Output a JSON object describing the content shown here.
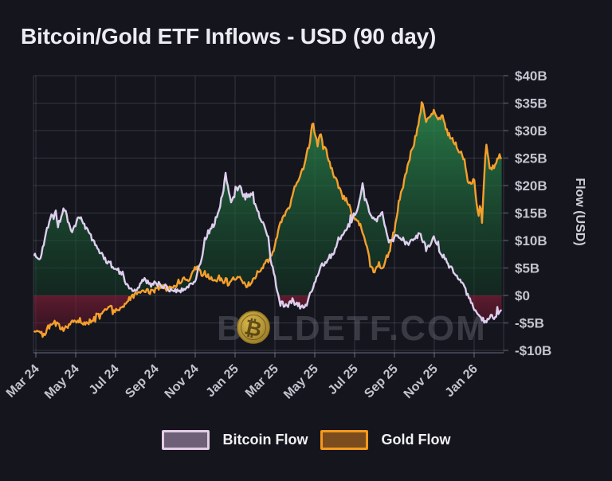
{
  "page": {
    "title": "Bitcoin/Gold ETF Inflows - USD (90 day)"
  },
  "watermark": {
    "prefix": "B",
    "coin_symbol": "₿",
    "suffix": "LDETF.COM",
    "full_text": "BOLDETF.COM"
  },
  "legend": {
    "items": [
      {
        "label": "Bitcoin Flow",
        "swatch_fill": "#6e6177",
        "swatch_border": "#e4cbe6"
      },
      {
        "label": "Gold Flow",
        "swatch_fill": "#7b4d1e",
        "swatch_border": "#f6991c"
      }
    ]
  },
  "colors": {
    "background": "#15151e",
    "grid": "rgba(163,168,184,0.22)",
    "plot_border": "rgba(163,168,184,0.40)",
    "tick_label": "#c4c4ce",
    "title": "#ebebf1",
    "bitcoin_line": "#decfee",
    "gold_line": "#f5a02c",
    "fill_positive_top": "rgba(50,160,88,0.85)",
    "fill_positive_bottom": "rgba(16,56,34,0.50)",
    "fill_negative_top": "rgba(130,30,56,0.68)",
    "fill_negative_bottom": "rgba(66,12,28,0.32)",
    "watermark_text": "rgba(128,128,140,0.35)",
    "coin_light": "#d9b84a",
    "coin_dark": "#8a6d22"
  },
  "chart_data": {
    "type": "line",
    "title": "Bitcoin/Gold ETF Inflows - USD (90 day)",
    "x_unit": "months since Mar 2024",
    "x_axis": {
      "tick_labels": [
        "Mar 24",
        "May 24",
        "Jul 24",
        "Sep 24",
        "Nov 24",
        "Jan 25",
        "Mar 25",
        "May 25",
        "Jul 25",
        "Sep 25",
        "Nov 25",
        "Jan 26"
      ],
      "tick_month_offsets": [
        0,
        2,
        4,
        6,
        8,
        10,
        12,
        14,
        16,
        18,
        20,
        22
      ]
    },
    "y_axis": {
      "label": "Flow (USD)",
      "tick_labels": [
        "$40B",
        "$35B",
        "$30B",
        "$25B",
        "$20B",
        "$15B",
        "$10B",
        "$5B",
        "$0",
        "-$5B",
        "-$10B"
      ],
      "tick_values": [
        40,
        35,
        30,
        25,
        20,
        15,
        10,
        5,
        0,
        -5,
        -10
      ],
      "range": [
        -10,
        40
      ],
      "unit": "USD billions"
    },
    "fill_between": {
      "positive": "green",
      "negative": "red"
    },
    "series": [
      {
        "name": "Bitcoin Flow",
        "color": "#decfee",
        "points": [
          [
            -0.1,
            7.5
          ],
          [
            0.2,
            6.3
          ],
          [
            0.5,
            11.5
          ],
          [
            0.8,
            14.5
          ],
          [
            1.0,
            15.4
          ],
          [
            1.1,
            12.3
          ],
          [
            1.4,
            16.2
          ],
          [
            1.7,
            13.0
          ],
          [
            1.8,
            11.2
          ],
          [
            2.2,
            14.5
          ],
          [
            2.6,
            12.0
          ],
          [
            2.9,
            10.0
          ],
          [
            3.4,
            6.8
          ],
          [
            3.8,
            5.5
          ],
          [
            4.1,
            4.8
          ],
          [
            4.6,
            2.0
          ],
          [
            5.0,
            0.8
          ],
          [
            5.4,
            2.8
          ],
          [
            5.8,
            2.0
          ],
          [
            6.1,
            2.2
          ],
          [
            6.7,
            1.2
          ],
          [
            7.3,
            0.9
          ],
          [
            7.7,
            1.8
          ],
          [
            8.0,
            3.0
          ],
          [
            8.3,
            6.2
          ],
          [
            8.5,
            10.6
          ],
          [
            8.9,
            12.7
          ],
          [
            9.2,
            15.6
          ],
          [
            9.4,
            19.0
          ],
          [
            9.5,
            22.3
          ],
          [
            9.8,
            17.2
          ],
          [
            10.2,
            20.0
          ],
          [
            10.5,
            17.8
          ],
          [
            10.8,
            18.3
          ],
          [
            11.1,
            15.3
          ],
          [
            11.5,
            12.8
          ],
          [
            11.7,
            10.0
          ],
          [
            11.8,
            6.2
          ],
          [
            12.0,
            3.0
          ],
          [
            12.2,
            -0.3
          ],
          [
            12.5,
            -2.3
          ],
          [
            12.8,
            -1.0
          ],
          [
            13.1,
            -1.5
          ],
          [
            13.5,
            -2.3
          ],
          [
            13.8,
            0.5
          ],
          [
            14.2,
            4.5
          ],
          [
            14.6,
            6.5
          ],
          [
            14.9,
            7.5
          ],
          [
            15.2,
            10.3
          ],
          [
            15.6,
            12.0
          ],
          [
            15.9,
            14.0
          ],
          [
            16.2,
            16.5
          ],
          [
            16.4,
            20.4
          ],
          [
            16.7,
            15.5
          ],
          [
            17.0,
            13.4
          ],
          [
            17.4,
            14.8
          ],
          [
            17.7,
            9.6
          ],
          [
            18.0,
            10.5
          ],
          [
            18.3,
            10.8
          ],
          [
            18.6,
            9.3
          ],
          [
            19.0,
            10.2
          ],
          [
            19.3,
            11.3
          ],
          [
            19.6,
            8.3
          ],
          [
            20.0,
            10.4
          ],
          [
            20.3,
            8.0
          ],
          [
            20.6,
            6.3
          ],
          [
            21.0,
            4.0
          ],
          [
            21.3,
            2.8
          ],
          [
            21.6,
            0.6
          ],
          [
            21.9,
            -1.5
          ],
          [
            22.1,
            -3.0
          ],
          [
            22.4,
            -4.4
          ],
          [
            22.6,
            -4.8
          ],
          [
            22.8,
            -3.8
          ],
          [
            23.0,
            -4.2
          ],
          [
            23.2,
            -3.3
          ],
          [
            23.4,
            -2.8
          ]
        ]
      },
      {
        "name": "Gold Flow",
        "color": "#f5a02c",
        "points": [
          [
            -0.1,
            -6.0
          ],
          [
            0.1,
            -6.8
          ],
          [
            0.4,
            -7.2
          ],
          [
            0.6,
            -5.8
          ],
          [
            0.9,
            -4.9
          ],
          [
            1.2,
            -5.8
          ],
          [
            1.4,
            -6.3
          ],
          [
            1.7,
            -5.2
          ],
          [
            2.1,
            -4.6
          ],
          [
            2.4,
            -5.2
          ],
          [
            2.6,
            -5.0
          ],
          [
            3.1,
            -3.6
          ],
          [
            3.5,
            -2.2
          ],
          [
            3.7,
            -2.1
          ],
          [
            4.0,
            -2.6
          ],
          [
            4.2,
            -2.4
          ],
          [
            4.7,
            -0.7
          ],
          [
            5.0,
            0.2
          ],
          [
            5.3,
            0.9
          ],
          [
            5.8,
            0.6
          ],
          [
            6.3,
            1.8
          ],
          [
            6.6,
            1.2
          ],
          [
            6.9,
            1.5
          ],
          [
            7.4,
            3.2
          ],
          [
            7.7,
            2.6
          ],
          [
            8.0,
            5.3
          ],
          [
            8.3,
            4.0
          ],
          [
            8.6,
            3.6
          ],
          [
            8.9,
            2.7
          ],
          [
            9.2,
            3.2
          ],
          [
            9.5,
            2.4
          ],
          [
            9.7,
            2.0
          ],
          [
            10.1,
            3.6
          ],
          [
            10.4,
            2.2
          ],
          [
            10.6,
            1.2
          ],
          [
            11.0,
            3.0
          ],
          [
            11.4,
            5.3
          ],
          [
            11.7,
            6.5
          ],
          [
            11.9,
            7.5
          ],
          [
            12.1,
            10.5
          ],
          [
            12.3,
            13.5
          ],
          [
            12.5,
            14.5
          ],
          [
            12.8,
            17.0
          ],
          [
            13.0,
            19.5
          ],
          [
            13.2,
            21.0
          ],
          [
            13.5,
            24.0
          ],
          [
            13.7,
            27.0
          ],
          [
            13.9,
            31.3
          ],
          [
            14.1,
            28.2
          ],
          [
            14.3,
            29.2
          ],
          [
            14.4,
            27.2
          ],
          [
            14.6,
            26.2
          ],
          [
            14.8,
            23.5
          ],
          [
            15.0,
            21.6
          ],
          [
            15.4,
            18.0
          ],
          [
            15.6,
            17.3
          ],
          [
            15.8,
            15.5
          ],
          [
            16.0,
            14.2
          ],
          [
            16.3,
            12.3
          ],
          [
            16.6,
            9.0
          ],
          [
            16.8,
            5.5
          ],
          [
            17.0,
            4.2
          ],
          [
            17.2,
            5.8
          ],
          [
            17.4,
            4.8
          ],
          [
            17.7,
            7.8
          ],
          [
            18.0,
            12.0
          ],
          [
            18.2,
            16.5
          ],
          [
            18.5,
            21.0
          ],
          [
            18.8,
            25.5
          ],
          [
            19.0,
            28.0
          ],
          [
            19.2,
            31.0
          ],
          [
            19.4,
            35.5
          ],
          [
            19.6,
            31.8
          ],
          [
            19.8,
            32.5
          ],
          [
            20.0,
            33.5
          ],
          [
            20.2,
            31.5
          ],
          [
            20.4,
            33.5
          ],
          [
            20.6,
            30.0
          ],
          [
            20.8,
            28.9
          ],
          [
            21.1,
            27.5
          ],
          [
            21.3,
            26.0
          ],
          [
            21.5,
            24.8
          ],
          [
            21.7,
            20.7
          ],
          [
            21.9,
            20.2
          ],
          [
            22.0,
            21.9
          ],
          [
            22.2,
            14.0
          ],
          [
            22.3,
            17.0
          ],
          [
            22.4,
            13.5
          ],
          [
            22.6,
            28.1
          ],
          [
            22.8,
            22.9
          ],
          [
            23.1,
            24.0
          ],
          [
            23.3,
            25.5
          ],
          [
            23.4,
            24.8
          ]
        ]
      }
    ]
  }
}
